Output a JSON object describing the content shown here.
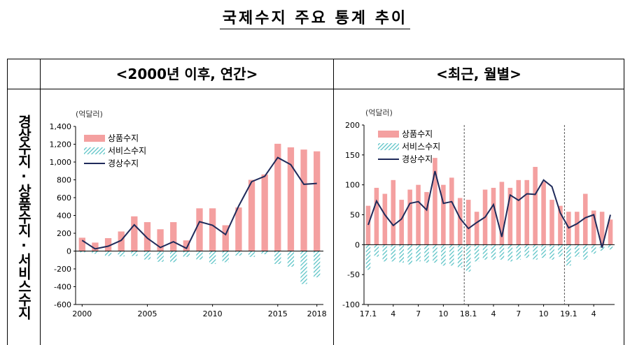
{
  "title": "국제수지 주요 통계 추이",
  "headers": {
    "left": "<2000년 이후, 연간>",
    "right": "<최근, 월별>"
  },
  "side_label": "경상수지·상품수지·서비스수지",
  "colors": {
    "goods": "#F4A0A0",
    "services": "#5BC3C6",
    "current": "#1F2A5A"
  },
  "chart_data": [
    {
      "type": "bar",
      "unit": "(억달러)",
      "x": [
        2000,
        2001,
        2002,
        2003,
        2004,
        2005,
        2006,
        2007,
        2008,
        2009,
        2010,
        2011,
        2012,
        2013,
        2014,
        2015,
        2016,
        2017,
        2018
      ],
      "x_tick_labels": [
        "2000",
        "2005",
        "2010",
        "2015",
        "2018"
      ],
      "x_tick_values": [
        2000,
        2005,
        2010,
        2015,
        2018
      ],
      "ylim": [
        -600,
        1400
      ],
      "yticks": [
        -600,
        -400,
        -200,
        0,
        200,
        400,
        600,
        800,
        1000,
        1200,
        1400
      ],
      "ytick_labels": [
        "-600",
        "-400",
        "-200",
        "0",
        "200",
        "400",
        "600",
        "800",
        "1,000",
        "1,200",
        "1,400"
      ],
      "series": [
        {
          "name": "상품수지",
          "kind": "bar",
          "values": [
            150,
            95,
            145,
            220,
            390,
            325,
            245,
            325,
            120,
            480,
            480,
            290,
            490,
            800,
            860,
            1205,
            1165,
            1140,
            1120
          ]
        },
        {
          "name": "서비스수지",
          "kind": "bar-hatched",
          "values": [
            -15,
            -30,
            -55,
            -60,
            -55,
            -95,
            -120,
            -125,
            -65,
            -95,
            -145,
            -125,
            -50,
            -65,
            -35,
            -145,
            -175,
            -370,
            -295
          ]
        },
        {
          "name": "경상수지",
          "kind": "line",
          "values": [
            120,
            25,
            55,
            120,
            295,
            145,
            40,
            105,
            30,
            330,
            290,
            185,
            505,
            780,
            840,
            1050,
            970,
            750,
            760
          ]
        }
      ]
    },
    {
      "type": "bar",
      "unit": "(억달러)",
      "x": [
        "17.1",
        "17.2",
        "17.3",
        "17.4",
        "17.5",
        "17.6",
        "17.7",
        "17.8",
        "17.9",
        "17.10",
        "17.11",
        "17.12",
        "18.1",
        "18.2",
        "18.3",
        "18.4",
        "18.5",
        "18.6",
        "18.7",
        "18.8",
        "18.9",
        "18.10",
        "18.11",
        "18.12",
        "19.1",
        "19.2",
        "19.3",
        "19.4",
        "19.5",
        "19.6"
      ],
      "x_tick_labels": [
        "17.1",
        "4",
        "7",
        "10",
        "18.1",
        "4",
        "7",
        "10",
        "19.1",
        "4"
      ],
      "x_tick_indices": [
        0,
        3,
        6,
        9,
        12,
        15,
        18,
        21,
        24,
        27
      ],
      "ylim": [
        -100,
        200
      ],
      "yticks": [
        -100,
        -50,
        0,
        50,
        100,
        150,
        200
      ],
      "ytick_labels": [
        "-100",
        "-50",
        "0",
        "50",
        "100",
        "150",
        "200"
      ],
      "dividers_after": [
        "17.12",
        "18.12"
      ],
      "series": [
        {
          "name": "상품수지",
          "kind": "bar",
          "values": [
            65,
            95,
            85,
            108,
            75,
            92,
            100,
            88,
            145,
            100,
            112,
            78,
            75,
            55,
            92,
            95,
            105,
            95,
            108,
            108,
            130,
            105,
            75,
            65,
            55,
            55,
            85,
            57,
            55,
            42
          ]
        },
        {
          "name": "서비스수지",
          "kind": "bar-hatched",
          "values": [
            -42,
            -20,
            -28,
            -28,
            -30,
            -33,
            -28,
            -30,
            -30,
            -35,
            -35,
            -38,
            -45,
            -28,
            -25,
            -25,
            -25,
            -28,
            -25,
            -22,
            -25,
            -22,
            -25,
            -20,
            -35,
            -20,
            -25,
            -15,
            -10,
            -8
          ]
        },
        {
          "name": "경상수지",
          "kind": "line",
          "values": [
            33,
            73,
            50,
            32,
            43,
            69,
            72,
            58,
            123,
            69,
            72,
            44,
            27,
            37,
            46,
            67,
            13,
            83,
            74,
            85,
            84,
            108,
            97,
            53,
            28,
            35,
            45,
            50,
            -5,
            50
          ]
        }
      ]
    }
  ]
}
